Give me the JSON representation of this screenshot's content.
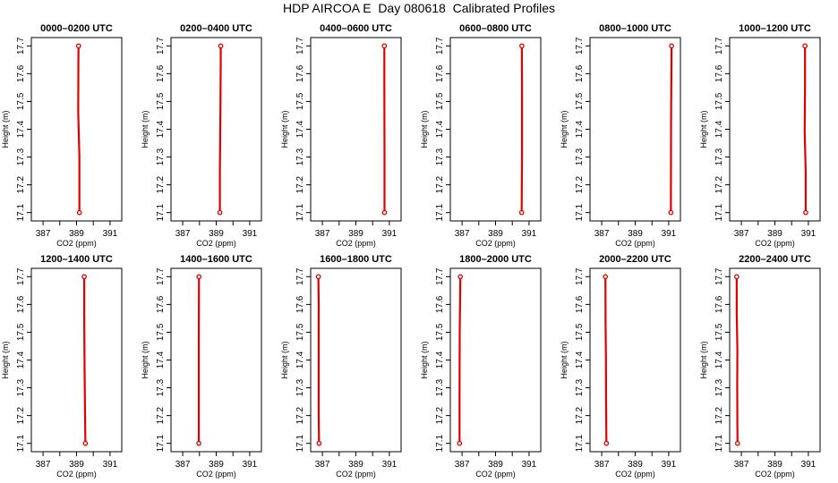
{
  "figure": {
    "title": "HDP AIRCOA E  Day 080618  Calibrated Profiles",
    "xlabel": "CO2 (ppm)",
    "ylabel": "Height (m)",
    "line_color": "#e00000",
    "axis_color": "#000000"
  },
  "chart_data": [
    {
      "type": "line",
      "title": "0000–0200 UTC",
      "xlim": [
        386.3,
        391.7
      ],
      "ylim": [
        17.07,
        17.73
      ],
      "xticks": [
        "387",
        "389",
        "391"
      ],
      "yticks": [
        "17.1",
        "17.2",
        "17.3",
        "17.4",
        "17.5",
        "17.6",
        "17.7"
      ],
      "series": [
        {
          "points": [
            {
              "co2": 389.12,
              "h": 17.7
            },
            {
              "co2": 389.11,
              "h": 17.65
            },
            {
              "co2": 389.1,
              "h": 17.46
            },
            {
              "co2": 389.17,
              "h": 17.3
            },
            {
              "co2": 389.17,
              "h": 17.1
            }
          ]
        }
      ]
    },
    {
      "type": "line",
      "title": "0200–0400 UTC",
      "xlim": [
        386.3,
        391.7
      ],
      "ylim": [
        17.07,
        17.73
      ],
      "xticks": [
        "387",
        "389",
        "391"
      ],
      "yticks": [
        "17.1",
        "17.2",
        "17.3",
        "17.4",
        "17.5",
        "17.6",
        "17.7"
      ],
      "series": [
        {
          "points": [
            {
              "co2": 389.27,
              "h": 17.7
            },
            {
              "co2": 389.27,
              "h": 17.64
            },
            {
              "co2": 389.25,
              "h": 17.46
            },
            {
              "co2": 389.22,
              "h": 17.25
            },
            {
              "co2": 389.22,
              "h": 17.1
            }
          ]
        }
      ]
    },
    {
      "type": "line",
      "title": "0400–0600 UTC",
      "xlim": [
        386.3,
        391.7
      ],
      "ylim": [
        17.07,
        17.73
      ],
      "xticks": [
        "387",
        "389",
        "391"
      ],
      "yticks": [
        "17.1",
        "17.2",
        "17.3",
        "17.4",
        "17.5",
        "17.6",
        "17.7"
      ],
      "series": [
        {
          "points": [
            {
              "co2": 390.7,
              "h": 17.7
            },
            {
              "co2": 390.7,
              "h": 17.56
            },
            {
              "co2": 390.71,
              "h": 17.3
            },
            {
              "co2": 390.71,
              "h": 17.1
            }
          ]
        }
      ]
    },
    {
      "type": "line",
      "title": "0600–0800 UTC",
      "xlim": [
        386.3,
        391.7
      ],
      "ylim": [
        17.07,
        17.73
      ],
      "xticks": [
        "387",
        "389",
        "391"
      ],
      "yticks": [
        "17.1",
        "17.2",
        "17.3",
        "17.4",
        "17.5",
        "17.6",
        "17.7"
      ],
      "series": [
        {
          "points": [
            {
              "co2": 390.57,
              "h": 17.7
            },
            {
              "co2": 390.58,
              "h": 17.54
            },
            {
              "co2": 390.58,
              "h": 17.31
            },
            {
              "co2": 390.56,
              "h": 17.1
            }
          ]
        }
      ]
    },
    {
      "type": "line",
      "title": "0800–1000 UTC",
      "xlim": [
        386.3,
        391.7
      ],
      "ylim": [
        17.07,
        17.73
      ],
      "xticks": [
        "387",
        "389",
        "391"
      ],
      "yticks": [
        "17.1",
        "17.2",
        "17.3",
        "17.4",
        "17.5",
        "17.6",
        "17.7"
      ],
      "series": [
        {
          "points": [
            {
              "co2": 391.17,
              "h": 17.7
            },
            {
              "co2": 391.16,
              "h": 17.59
            },
            {
              "co2": 391.14,
              "h": 17.42
            },
            {
              "co2": 391.13,
              "h": 17.1
            }
          ]
        }
      ]
    },
    {
      "type": "line",
      "title": "1000–1200 UTC",
      "xlim": [
        386.3,
        391.7
      ],
      "ylim": [
        17.07,
        17.73
      ],
      "xticks": [
        "387",
        "389",
        "391"
      ],
      "yticks": [
        "17.1",
        "17.2",
        "17.3",
        "17.4",
        "17.5",
        "17.6",
        "17.7"
      ],
      "series": [
        {
          "points": [
            {
              "co2": 390.8,
              "h": 17.7
            },
            {
              "co2": 390.8,
              "h": 17.55
            },
            {
              "co2": 390.78,
              "h": 17.39
            },
            {
              "co2": 390.84,
              "h": 17.25
            },
            {
              "co2": 390.84,
              "h": 17.1
            }
          ]
        }
      ]
    },
    {
      "type": "line",
      "title": "1200–1400 UTC",
      "xlim": [
        386.3,
        391.7
      ],
      "ylim": [
        17.07,
        17.73
      ],
      "xticks": [
        "387",
        "389",
        "391"
      ],
      "yticks": [
        "17.1",
        "17.2",
        "17.3",
        "17.4",
        "17.5",
        "17.6",
        "17.7"
      ],
      "series": [
        {
          "points": [
            {
              "co2": 389.46,
              "h": 17.7
            },
            {
              "co2": 389.46,
              "h": 17.56
            },
            {
              "co2": 389.47,
              "h": 17.45
            },
            {
              "co2": 389.48,
              "h": 17.36
            },
            {
              "co2": 389.5,
              "h": 17.25
            },
            {
              "co2": 389.52,
              "h": 17.14
            },
            {
              "co2": 389.53,
              "h": 17.1
            }
          ]
        }
      ]
    },
    {
      "type": "line",
      "title": "1400–1600 UTC",
      "xlim": [
        386.3,
        391.7
      ],
      "ylim": [
        17.07,
        17.73
      ],
      "xticks": [
        "387",
        "389",
        "391"
      ],
      "yticks": [
        "17.1",
        "17.2",
        "17.3",
        "17.4",
        "17.5",
        "17.6",
        "17.7"
      ],
      "series": [
        {
          "points": [
            {
              "co2": 387.97,
              "h": 17.7
            },
            {
              "co2": 387.96,
              "h": 17.46
            },
            {
              "co2": 387.96,
              "h": 17.1
            }
          ]
        }
      ]
    },
    {
      "type": "line",
      "title": "1600–1800 UTC",
      "xlim": [
        386.3,
        391.7
      ],
      "ylim": [
        17.07,
        17.73
      ],
      "xticks": [
        "387",
        "389",
        "391"
      ],
      "yticks": [
        "17.1",
        "17.2",
        "17.3",
        "17.4",
        "17.5",
        "17.6",
        "17.7"
      ],
      "series": [
        {
          "points": [
            {
              "co2": 386.76,
              "h": 17.7
            },
            {
              "co2": 386.78,
              "h": 17.6
            },
            {
              "co2": 386.78,
              "h": 17.2
            },
            {
              "co2": 386.8,
              "h": 17.1
            }
          ]
        }
      ]
    },
    {
      "type": "line",
      "title": "1800–2000 UTC",
      "xlim": [
        386.3,
        391.7
      ],
      "ylim": [
        17.07,
        17.73
      ],
      "xticks": [
        "387",
        "389",
        "391"
      ],
      "yticks": [
        "17.1",
        "17.2",
        "17.3",
        "17.4",
        "17.5",
        "17.6",
        "17.7"
      ],
      "series": [
        {
          "points": [
            {
              "co2": 386.9,
              "h": 17.7
            },
            {
              "co2": 386.86,
              "h": 17.5
            },
            {
              "co2": 386.85,
              "h": 17.28
            },
            {
              "co2": 386.85,
              "h": 17.1
            }
          ]
        }
      ]
    },
    {
      "type": "line",
      "title": "2000–2200 UTC",
      "xlim": [
        386.3,
        391.7
      ],
      "ylim": [
        17.07,
        17.73
      ],
      "xticks": [
        "387",
        "389",
        "391"
      ],
      "yticks": [
        "17.1",
        "17.2",
        "17.3",
        "17.4",
        "17.5",
        "17.6",
        "17.7"
      ],
      "series": [
        {
          "points": [
            {
              "co2": 387.22,
              "h": 17.7
            },
            {
              "co2": 387.23,
              "h": 17.53
            },
            {
              "co2": 387.25,
              "h": 17.41
            },
            {
              "co2": 387.26,
              "h": 17.25
            },
            {
              "co2": 387.28,
              "h": 17.1
            }
          ]
        }
      ]
    },
    {
      "type": "line",
      "title": "2200–2400 UTC",
      "xlim": [
        386.3,
        391.7
      ],
      "ylim": [
        17.07,
        17.73
      ],
      "xticks": [
        "387",
        "389",
        "391"
      ],
      "yticks": [
        "17.1",
        "17.2",
        "17.3",
        "17.4",
        "17.5",
        "17.6",
        "17.7"
      ],
      "series": [
        {
          "points": [
            {
              "co2": 386.72,
              "h": 17.7
            },
            {
              "co2": 386.72,
              "h": 17.57
            },
            {
              "co2": 386.76,
              "h": 17.44
            },
            {
              "co2": 386.75,
              "h": 17.3
            },
            {
              "co2": 386.76,
              "h": 17.16
            },
            {
              "co2": 386.77,
              "h": 17.1
            }
          ]
        }
      ]
    }
  ]
}
